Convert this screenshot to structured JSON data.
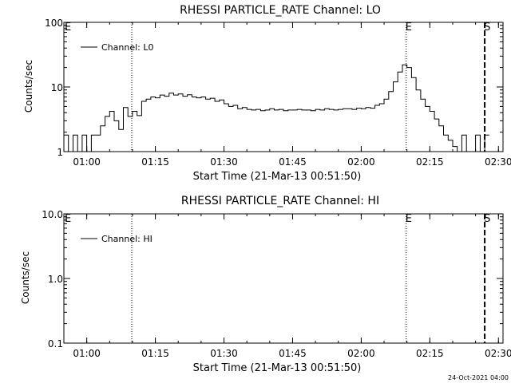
{
  "stamp": "24-Oct-2021 04:00",
  "chart_data": [
    {
      "type": "line",
      "title": "RHESSI PARTICLE_RATE Channel: LO",
      "xlabel": "Start Time (21-Mar-13 00:51:50)",
      "ylabel": "Counts/sec",
      "y_scale": "log",
      "ylim": [
        1,
        100
      ],
      "y_ticks": [
        "1",
        "10",
        "100"
      ],
      "xlim": [
        "00:55",
        "02:31"
      ],
      "x_ticks": [
        "01:00",
        "01:15",
        "01:30",
        "01:45",
        "02:00",
        "02:15",
        "02:30"
      ],
      "legend_position": "top-left",
      "grid": false,
      "series": [
        {
          "name": "Channel: L0",
          "color": "#000000",
          "x": [
            "00:55",
            "00:56",
            "00:57",
            "00:58",
            "00:59",
            "01:00",
            "01:01",
            "01:02",
            "01:03",
            "01:04",
            "01:05",
            "01:06",
            "01:07",
            "01:08",
            "01:09",
            "01:10",
            "01:11",
            "01:12",
            "01:13",
            "01:14",
            "01:15",
            "01:16",
            "01:17",
            "01:18",
            "01:19",
            "01:20",
            "01:21",
            "01:22",
            "01:23",
            "01:24",
            "01:25",
            "01:26",
            "01:27",
            "01:28",
            "01:29",
            "01:30",
            "01:31",
            "01:32",
            "01:33",
            "01:34",
            "01:35",
            "01:36",
            "01:37",
            "01:38",
            "01:39",
            "01:40",
            "01:41",
            "01:42",
            "01:43",
            "01:44",
            "01:45",
            "01:46",
            "01:47",
            "01:48",
            "01:49",
            "01:50",
            "01:51",
            "01:52",
            "01:53",
            "01:54",
            "01:55",
            "01:56",
            "01:57",
            "01:58",
            "01:59",
            "02:00",
            "02:01",
            "02:02",
            "02:03",
            "02:04",
            "02:05",
            "02:06",
            "02:07",
            "02:08",
            "02:09",
            "02:10",
            "02:11",
            "02:12",
            "02:13",
            "02:14",
            "02:15",
            "02:16",
            "02:17",
            "02:18",
            "02:19",
            "02:20",
            "02:21",
            "02:22",
            "02:23",
            "02:24",
            "02:25",
            "02:26",
            "02:27"
          ],
          "y": [
            1.8,
            1,
            1.8,
            1,
            1.8,
            1,
            1.8,
            1.8,
            2.5,
            3.5,
            4.2,
            3,
            2.2,
            4.8,
            3.5,
            4.2,
            3.6,
            6,
            6.5,
            7,
            6.8,
            7.5,
            7.2,
            8,
            7.5,
            7.8,
            7.2,
            7.6,
            7,
            6.8,
            7,
            6.5,
            6.7,
            6,
            6.3,
            5.5,
            5,
            5.2,
            4.6,
            4.8,
            4.5,
            4.4,
            4.5,
            4.3,
            4.4,
            4.6,
            4.4,
            4.5,
            4.3,
            4.4,
            4.4,
            4.5,
            4.4,
            4.4,
            4.3,
            4.5,
            4.4,
            4.6,
            4.5,
            4.4,
            4.5,
            4.6,
            4.6,
            4.5,
            4.7,
            4.6,
            4.8,
            4.7,
            5.2,
            5.5,
            6.5,
            8.5,
            12,
            17,
            22,
            20,
            14,
            9,
            6.5,
            5,
            4.2,
            3.2,
            2.5,
            1.8,
            1.5,
            1.2,
            1,
            1.8,
            1,
            1,
            1.8,
            1,
            1.8
          ]
        }
      ],
      "markers": [
        {
          "label": "E",
          "x": "00:55",
          "style": "none"
        },
        {
          "label": "",
          "x": "01:09:50",
          "style": "dotted"
        },
        {
          "label": "E",
          "x": "02:09:50",
          "style": "dotted"
        },
        {
          "label": "S",
          "x": "02:27",
          "style": "dashed"
        }
      ]
    },
    {
      "type": "line",
      "title": "RHESSI PARTICLE_RATE Channel: HI",
      "xlabel": "Start Time (21-Mar-13 00:51:50)",
      "ylabel": "Counts/sec",
      "y_scale": "log",
      "ylim": [
        0.1,
        10
      ],
      "y_ticks": [
        "0.1",
        "1.0",
        "10.0"
      ],
      "xlim": [
        "00:55",
        "02:31"
      ],
      "x_ticks": [
        "01:00",
        "01:15",
        "01:30",
        "01:45",
        "02:00",
        "02:15",
        "02:30"
      ],
      "legend_position": "top-left",
      "grid": false,
      "series": [
        {
          "name": "Channel: HI",
          "color": "#000000",
          "x": [],
          "y": []
        }
      ],
      "markers": [
        {
          "label": "E",
          "x": "00:55",
          "style": "none"
        },
        {
          "label": "",
          "x": "01:09:50",
          "style": "dotted"
        },
        {
          "label": "E",
          "x": "02:09:50",
          "style": "dotted"
        },
        {
          "label": "S",
          "x": "02:27",
          "style": "dashed"
        }
      ]
    }
  ]
}
